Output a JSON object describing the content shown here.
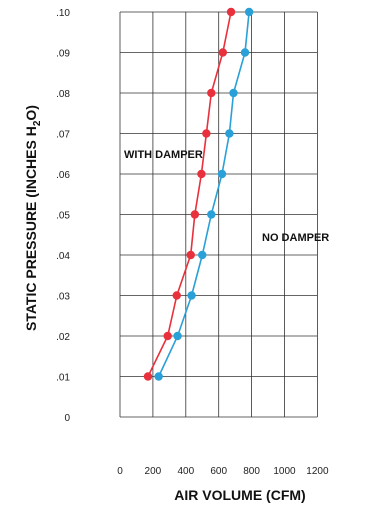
{
  "chart_data": {
    "type": "line",
    "title": "",
    "xlabel": "AIR VOLUME (CFM)",
    "ylabel_main": "STATIC PRESSURE (INCHES H",
    "ylabel_sub": "2",
    "ylabel_end": "O)",
    "xlim": [
      0,
      1200
    ],
    "ylim": [
      0,
      0.1
    ],
    "x_ticks": [
      0,
      200,
      400,
      600,
      800,
      1000,
      1200
    ],
    "x_tick_labels": [
      "0",
      "200",
      "400",
      "600",
      "800",
      "1000",
      "1200"
    ],
    "y_ticks": [
      0,
      0.01,
      0.02,
      0.03,
      0.04,
      0.05,
      0.06,
      0.07,
      0.08,
      0.09,
      0.1
    ],
    "y_tick_labels": [
      "0",
      ".01",
      ".02",
      ".03",
      ".04",
      ".05",
      ".06",
      ".07",
      ".08",
      ".09",
      ".10"
    ],
    "grid": true,
    "series": [
      {
        "name": "WITH DAMPER",
        "color": "#e8313c",
        "x": [
          170,
          290,
          345,
          430,
          455,
          495,
          525,
          555,
          625,
          675
        ],
        "y": [
          0.01,
          0.02,
          0.03,
          0.04,
          0.05,
          0.06,
          0.07,
          0.08,
          0.09,
          0.1
        ]
      },
      {
        "name": "NO DAMPER",
        "color": "#2aa0d8",
        "x": [
          235,
          350,
          435,
          500,
          555,
          620,
          665,
          690,
          760,
          785
        ],
        "y": [
          0.01,
          0.02,
          0.03,
          0.04,
          0.05,
          0.06,
          0.07,
          0.08,
          0.09,
          0.1
        ]
      }
    ]
  }
}
